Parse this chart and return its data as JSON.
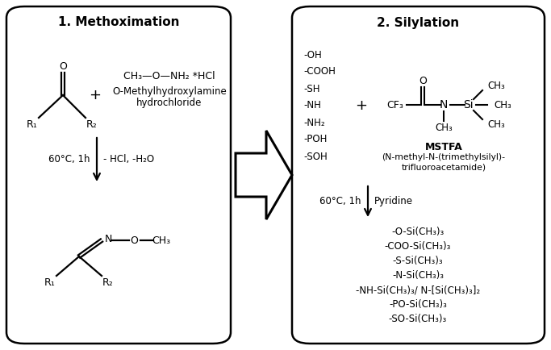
{
  "bg_color": "#ffffff",
  "box_color": "#000000",
  "title1": "1. Methoximation",
  "title2": "2. Silylation",
  "left_conditions": "60°C, 1h",
  "left_byproducts": "- HCl, -H₂O",
  "right_conditions": "60°C, 1h",
  "right_catalyst": "Pyridine",
  "right_reagent_label": "MSTFA",
  "right_reagent_full1": "(N-methyl-N-(trimethylsilyl)-",
  "right_reagent_full2": "trifluoroacetamide)",
  "right_functional_groups": [
    "-OH",
    "-COOH",
    "-SH",
    "-NH",
    "-NH₂",
    "-POH",
    "-SOH"
  ],
  "right_products": [
    "-O-Si(CH₃)₃",
    "-COO-Si(CH₃)₃",
    "-S-Si(CH₃)₃",
    "-N-Si(CH₃)₃",
    "-NH-Si(CH₃)₃/ N-[Si(CH₃)₃]₂",
    "-PO-Si(CH₃)₃",
    "-SO-Si(CH₃)₃"
  ],
  "fig_w": 6.83,
  "fig_h": 4.34,
  "dpi": 100
}
